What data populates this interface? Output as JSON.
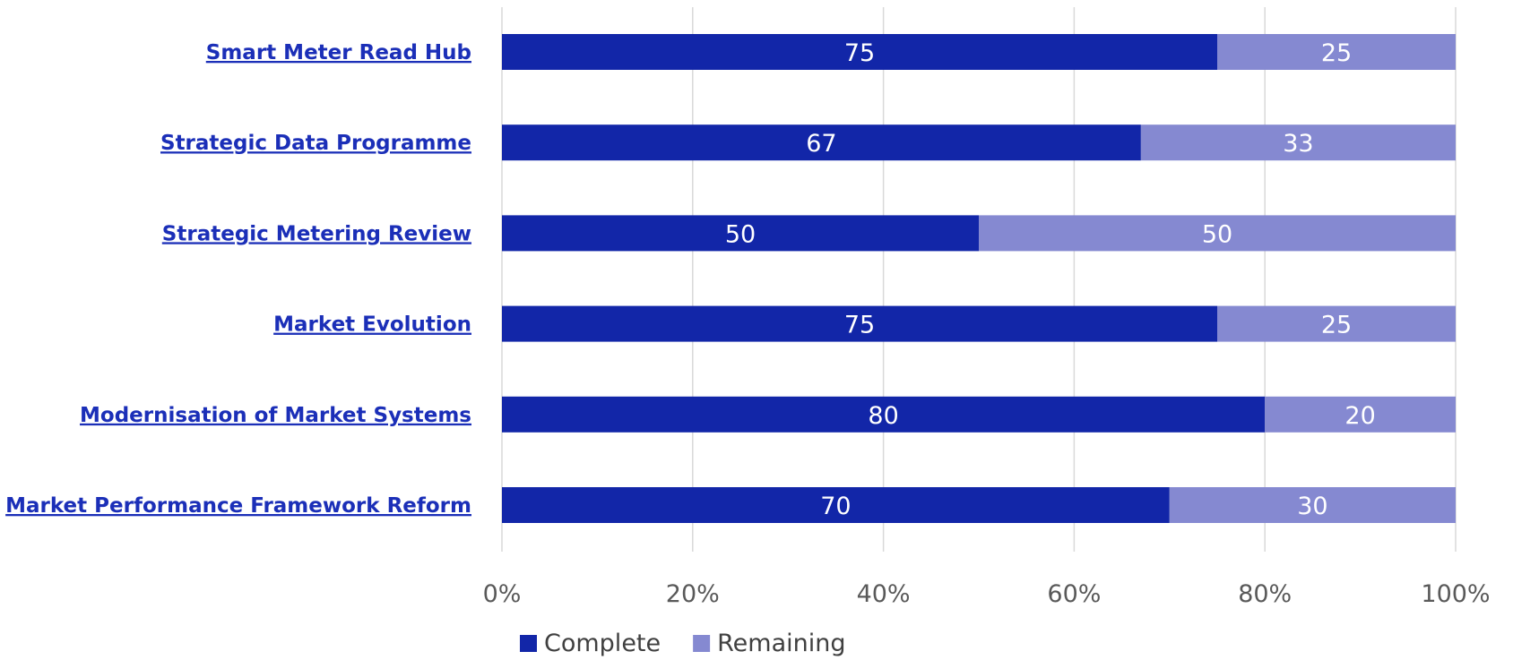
{
  "colors": {
    "complete": "#1226a8",
    "remaining": "#8589d1",
    "label_link": "#1b2fb8",
    "gridline": "#d9d9d9",
    "tick_text": "#595959",
    "legend_text": "#404040",
    "data_label_text": "#ffffff"
  },
  "chart_data": {
    "type": "bar",
    "orientation": "horizontal",
    "stacking": "percent",
    "categories": [
      "Smart Meter Read Hub",
      "Strategic Data Programme",
      "Strategic Metering Review",
      "Market Evolution",
      "Modernisation of Market Systems",
      "Market Performance Framework Reform"
    ],
    "series": [
      {
        "name": "Complete",
        "values": [
          75,
          67,
          50,
          75,
          80,
          70
        ]
      },
      {
        "name": "Remaining",
        "values": [
          25,
          33,
          50,
          25,
          20,
          30
        ]
      }
    ],
    "xlim": [
      0,
      100
    ],
    "x_ticks": [
      "0%",
      "20%",
      "40%",
      "60%",
      "80%",
      "100%"
    ],
    "grid": true,
    "legend_position": "bottom",
    "title": "",
    "xlabel": "",
    "ylabel": ""
  }
}
